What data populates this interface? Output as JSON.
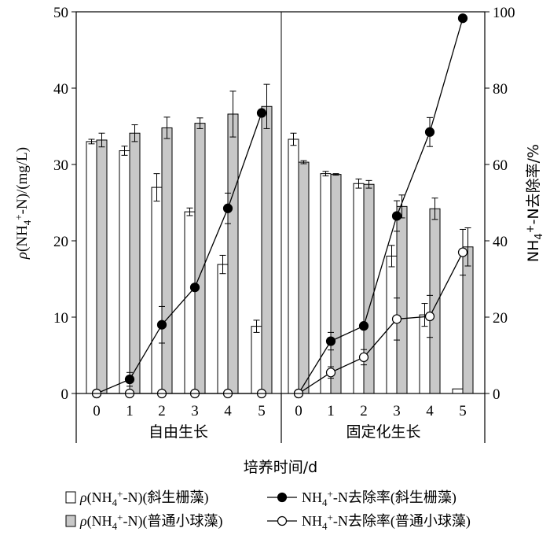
{
  "chart_data": {
    "type": "bar",
    "left_axis": {
      "label": "ρ(NH4+-N)/(mg/L)",
      "ylim": [
        0,
        50
      ],
      "ticks": [
        0,
        10,
        20,
        30,
        40,
        50
      ]
    },
    "right_axis": {
      "label": "NH4+-N去除率/%",
      "ylim": [
        0,
        100
      ],
      "ticks": [
        0,
        20,
        40,
        60,
        80,
        100
      ]
    },
    "x_axis": {
      "label": "培养时间/d",
      "groups": [
        {
          "name": "自由生长",
          "days": [
            0,
            1,
            2,
            3,
            4,
            5
          ]
        },
        {
          "name": "固定化生长",
          "days": [
            0,
            1,
            2,
            3,
            4,
            5
          ]
        }
      ]
    },
    "bar_series": [
      {
        "name": "ρ(NH4+-N)(斜生栅藻)",
        "fill": "#ffffff",
        "values": [
          33.0,
          31.8,
          27.0,
          23.8,
          16.9,
          8.8,
          33.3,
          28.8,
          27.5,
          18.0,
          10.3,
          0.6
        ],
        "errors": [
          0.3,
          0.6,
          1.8,
          0.5,
          1.2,
          0.8,
          0.8,
          0.3,
          0.6,
          1.4,
          1.5,
          0.0
        ]
      },
      {
        "name": "ρ(NH4+-N)(普通小球藻)",
        "fill": "#c8c8c8",
        "values": [
          33.2,
          34.1,
          34.8,
          35.4,
          36.6,
          37.6,
          30.3,
          28.7,
          27.4,
          24.5,
          24.2,
          19.2
        ],
        "errors": [
          0.9,
          1.1,
          1.4,
          0.7,
          3.0,
          2.9,
          0.2,
          0.1,
          0.5,
          1.5,
          1.4,
          2.5
        ]
      }
    ],
    "line_series": [
      {
        "name": "NH4+-N去除率(斜生栅藻)",
        "marker": "filled-circle",
        "values": [
          0,
          3.7,
          18.0,
          27.8,
          48.5,
          73.5,
          0,
          13.7,
          17.7,
          46.5,
          68.5,
          98.3
        ],
        "errors": [
          0,
          1.8,
          4.8,
          0.8,
          4.0,
          0.8,
          0,
          2.3,
          0.8,
          4.0,
          3.8,
          0
        ]
      },
      {
        "name": "NH4+-N去除率(普通小球藻)",
        "marker": "open-circle",
        "values": [
          0,
          0,
          0,
          0,
          0,
          0,
          0,
          5.5,
          9.5,
          19.5,
          20.2,
          37.0
        ],
        "errors": [
          0,
          0,
          0,
          0,
          0,
          0,
          0,
          1.5,
          2.0,
          5.5,
          5.5,
          6.0
        ]
      }
    ],
    "legend": {
      "placement": "bottom",
      "items": [
        {
          "label": "ρ(NH4+-N)(斜生栅藻)",
          "kind": "bar-white"
        },
        {
          "label": "NH4+-N去除率(斜生栅藻)",
          "kind": "line-filled"
        },
        {
          "label": "ρ(NH4+-N)(普通小球藻)",
          "kind": "bar-gray"
        },
        {
          "label": "NH4+-N去除率(普通小球藻)",
          "kind": "line-open"
        }
      ]
    }
  }
}
